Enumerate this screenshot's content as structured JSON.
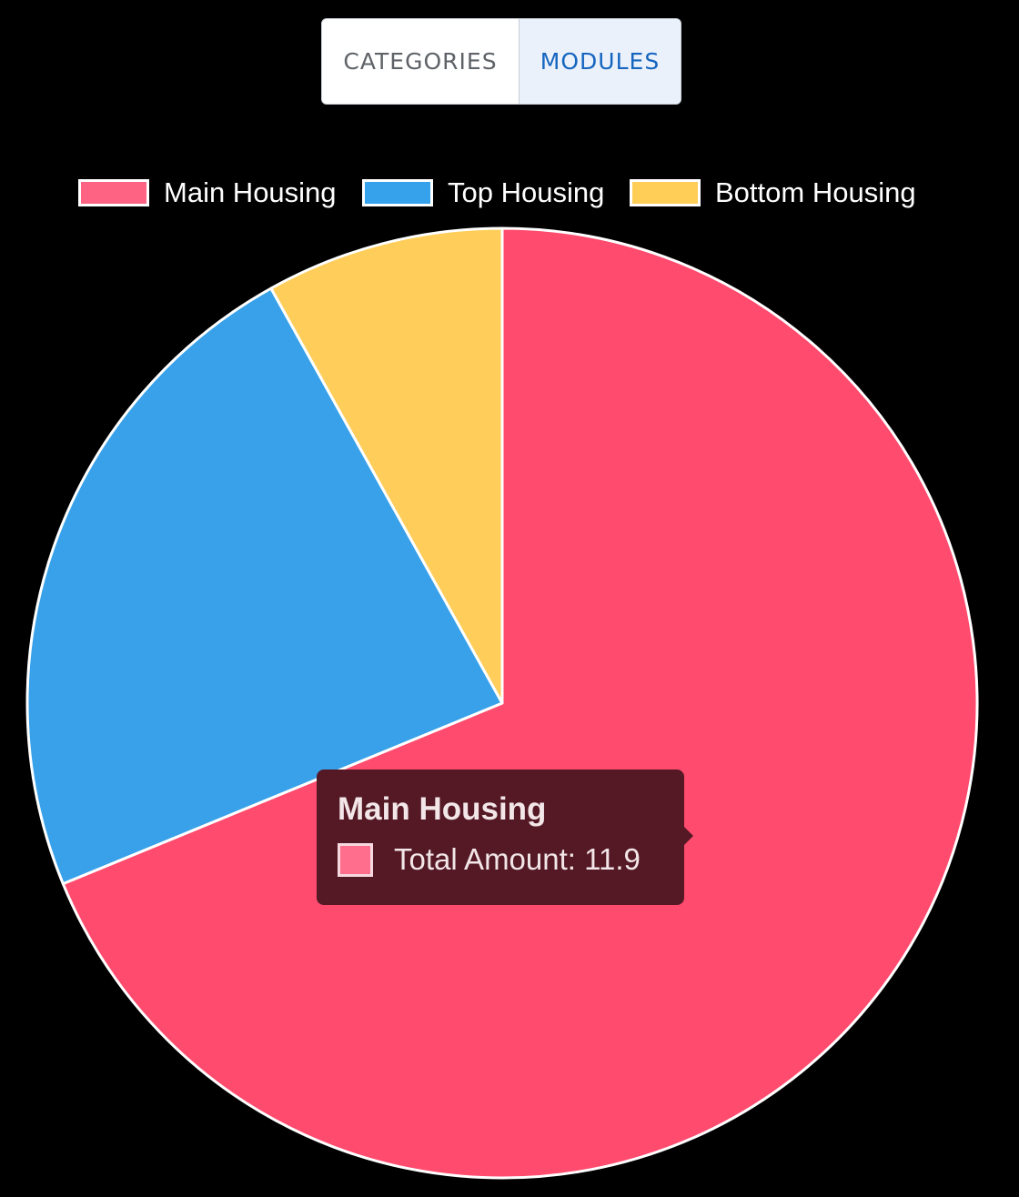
{
  "toggle": {
    "categories_label": "CATEGORIES",
    "modules_label": "MODULES",
    "active": "MODULES"
  },
  "chart_data": {
    "type": "pie",
    "categories": [
      "Main Housing",
      "Top Housing",
      "Bottom Housing"
    ],
    "values": [
      11.9,
      4.0,
      1.4
    ],
    "colors": [
      "#ff4b6e",
      "#38a1e9",
      "#ffcd5a"
    ],
    "legend": {
      "position": "top",
      "items": [
        {
          "label": "Main Housing",
          "color": "#ff6384"
        },
        {
          "label": "Top Housing",
          "color": "#36a2eb"
        },
        {
          "label": "Bottom Housing",
          "color": "#ffce56"
        }
      ]
    }
  },
  "tooltip": {
    "title": "Main Housing",
    "text": "Total Amount: 11.9",
    "swatch_color": "#ff6f8d"
  }
}
